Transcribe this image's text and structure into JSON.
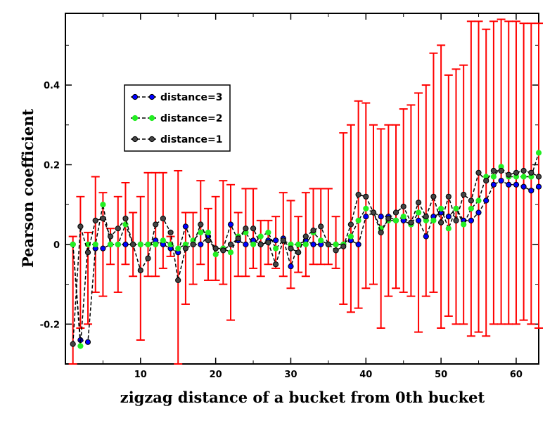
{
  "chart_data": {
    "type": "line",
    "title": "",
    "xlabel": "zigzag distance of a bucket from 0th bucket",
    "ylabel": "Pearson coefficient",
    "xlim": [
      0,
      63
    ],
    "ylim": [
      -0.3,
      0.58
    ],
    "x_ticks": [
      10,
      20,
      30,
      40,
      50,
      60
    ],
    "x_tick_labels": [
      "10",
      "20",
      "30",
      "40",
      "50",
      "60"
    ],
    "y_ticks": [
      -0.2,
      0,
      0.2,
      0.4
    ],
    "y_tick_labels": [
      "-0.2",
      "0",
      "0.2",
      "0.4"
    ],
    "legend_position": "upper-left",
    "x": [
      1,
      2,
      3,
      4,
      5,
      6,
      7,
      8,
      9,
      10,
      11,
      12,
      13,
      14,
      15,
      16,
      17,
      18,
      19,
      20,
      21,
      22,
      23,
      24,
      25,
      26,
      27,
      28,
      29,
      30,
      31,
      32,
      33,
      34,
      35,
      36,
      37,
      38,
      39,
      40,
      41,
      42,
      43,
      44,
      45,
      46,
      47,
      48,
      49,
      50,
      51,
      52,
      53,
      54,
      55,
      56,
      57,
      58,
      59,
      60,
      61,
      62,
      63
    ],
    "series": [
      {
        "name": "distance=3",
        "color": "#0000ff",
        "values": [
          0.0,
          -0.24,
          -0.245,
          -0.01,
          -0.01,
          0.0,
          0.0,
          0.0,
          0.0,
          0.0,
          0.0,
          0.01,
          0.0,
          -0.01,
          -0.02,
          0.045,
          0.0,
          0.0,
          0.02,
          -0.01,
          -0.01,
          0.05,
          0.01,
          0.0,
          0.01,
          0.0,
          0.01,
          0.01,
          0.015,
          -0.055,
          0.0,
          0.01,
          0.0,
          0.0,
          0.0,
          0.0,
          0.0,
          0.01,
          0.0,
          0.07,
          0.08,
          0.07,
          0.07,
          0.06,
          0.06,
          0.05,
          0.06,
          0.02,
          0.07,
          0.08,
          0.07,
          0.09,
          0.06,
          0.06,
          0.08,
          0.11,
          0.15,
          0.16,
          0.15,
          0.15,
          0.145,
          0.135,
          0.145
        ]
      },
      {
        "name": "distance=2",
        "color": "#22ee22",
        "values": [
          0.0,
          -0.255,
          0.0,
          0.0,
          0.1,
          0.0,
          0.0,
          0.05,
          0.0,
          0.0,
          0.0,
          0.0,
          0.01,
          0.0,
          -0.01,
          0.0,
          0.01,
          0.03,
          0.03,
          -0.025,
          -0.01,
          -0.02,
          0.02,
          0.03,
          0.0,
          0.02,
          0.03,
          -0.01,
          0.01,
          0.0,
          0.0,
          0.0,
          0.03,
          0.01,
          0.0,
          0.0,
          0.0,
          0.02,
          0.06,
          0.09,
          0.08,
          0.04,
          0.06,
          0.06,
          0.07,
          0.05,
          0.08,
          0.06,
          0.06,
          0.09,
          0.04,
          0.09,
          0.05,
          0.09,
          0.11,
          0.17,
          0.17,
          0.195,
          0.17,
          0.17,
          0.17,
          0.17,
          0.23
        ]
      },
      {
        "name": "distance=1",
        "color": "#000000",
        "values": [
          -0.25,
          0.045,
          -0.02,
          0.06,
          0.065,
          0.02,
          0.04,
          0.065,
          0.0,
          -0.065,
          -0.035,
          0.05,
          0.065,
          0.03,
          -0.09,
          -0.01,
          0.0,
          0.05,
          0.01,
          -0.01,
          -0.015,
          0.0,
          0.015,
          0.04,
          0.04,
          0.0,
          0.005,
          -0.05,
          0.01,
          -0.01,
          -0.02,
          0.02,
          0.035,
          0.045,
          0.0,
          -0.015,
          -0.005,
          0.05,
          0.125,
          0.12,
          0.08,
          0.03,
          0.065,
          0.08,
          0.095,
          0.055,
          0.105,
          0.07,
          0.12,
          0.055,
          0.12,
          0.06,
          0.125,
          0.11,
          0.18,
          0.16,
          0.185,
          0.185,
          0.175,
          0.18,
          0.185,
          0.18,
          0.17
        ]
      }
    ],
    "error_bars": {
      "color": "#ff0000",
      "lower": [
        -0.3,
        -0.21,
        -0.2,
        -0.12,
        -0.13,
        -0.05,
        -0.12,
        -0.05,
        -0.08,
        -0.24,
        -0.08,
        -0.08,
        -0.06,
        -0.03,
        -0.3,
        -0.15,
        -0.1,
        -0.05,
        -0.09,
        -0.09,
        -0.1,
        -0.19,
        -0.08,
        -0.08,
        -0.06,
        -0.08,
        -0.05,
        -0.06,
        -0.08,
        -0.11,
        -0.07,
        -0.08,
        -0.05,
        -0.05,
        -0.05,
        -0.06,
        -0.15,
        -0.17,
        -0.16,
        -0.11,
        -0.1,
        -0.21,
        -0.13,
        -0.11,
        -0.12,
        -0.13,
        -0.22,
        -0.13,
        -0.12,
        -0.21,
        -0.18,
        -0.2,
        -0.2,
        -0.23,
        -0.22,
        -0.23,
        -0.2,
        -0.2,
        -0.2,
        -0.2,
        -0.19,
        -0.2,
        -0.21
      ],
      "upper": [
        0.02,
        0.12,
        0.03,
        0.17,
        0.13,
        0.04,
        0.12,
        0.155,
        0.08,
        0.12,
        0.18,
        0.18,
        0.18,
        0.02,
        0.185,
        0.08,
        0.08,
        0.16,
        0.09,
        0.12,
        0.16,
        0.15,
        0.08,
        0.14,
        0.14,
        0.06,
        0.06,
        0.07,
        0.13,
        0.11,
        0.07,
        0.13,
        0.14,
        0.14,
        0.14,
        0.07,
        0.28,
        0.3,
        0.36,
        0.355,
        0.3,
        0.29,
        0.3,
        0.3,
        0.34,
        0.35,
        0.38,
        0.4,
        0.48,
        0.5,
        0.425,
        0.44,
        0.45,
        0.56,
        0.56,
        0.54,
        0.56,
        0.565,
        0.56,
        0.56,
        0.555,
        0.555,
        0.555
      ]
    }
  }
}
